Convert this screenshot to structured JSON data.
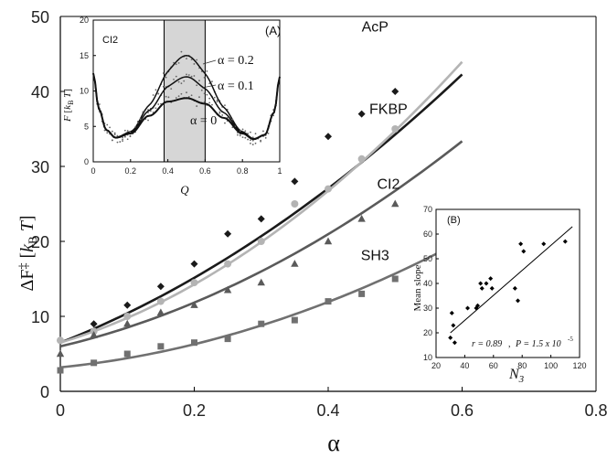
{
  "chart_data": [
    {
      "type": "scatter",
      "title": "",
      "xlabel": "α",
      "ylabel": "ΔF‡ [kB T]",
      "xlim": [
        0,
        0.8
      ],
      "ylim": [
        0,
        50
      ],
      "xticks": [
        "0",
        "0.2",
        "0.4",
        "0.6",
        "0.8"
      ],
      "yticks": [
        "0",
        "10",
        "20",
        "30",
        "40",
        "50"
      ],
      "series": [
        {
          "name": "AcP",
          "color": "#1a1a1a",
          "marker": "diamond",
          "x": [
            0,
            0.05,
            0.1,
            0.15,
            0.2,
            0.25,
            0.3,
            0.35,
            0.4,
            0.45,
            0.5
          ],
          "y": [
            6.8,
            9.0,
            11.5,
            14.0,
            17.0,
            21.0,
            23.0,
            28.0,
            34.0,
            37.0,
            40.0
          ],
          "fit": {
            "a": 6.5,
            "b": 35.0,
            "c": 41.0
          }
        },
        {
          "name": "FKBP",
          "color": "#b4b4b4",
          "marker": "circle",
          "x": [
            0,
            0.05,
            0.1,
            0.15,
            0.2,
            0.25,
            0.3,
            0.35,
            0.4,
            0.45,
            0.5
          ],
          "y": [
            6.8,
            8.0,
            10.0,
            12.0,
            14.5,
            17.0,
            20.0,
            25.0,
            27.0,
            31.0,
            35.0
          ],
          "fit": {
            "a": 6.5,
            "b": 27.0,
            "c": 59.0
          }
        },
        {
          "name": "CI2",
          "color": "#5a5a5a",
          "marker": "triangle",
          "x": [
            0,
            0.05,
            0.1,
            0.15,
            0.2,
            0.25,
            0.3,
            0.35,
            0.4,
            0.45,
            0.5
          ],
          "y": [
            5.0,
            7.5,
            9.0,
            10.5,
            11.5,
            13.5,
            14.5,
            17.0,
            20.0,
            23.0,
            25.0
          ],
          "fit": {
            "a": 6.0,
            "b": 21.0,
            "c": 41.0
          }
        },
        {
          "name": "SH3",
          "color": "#707070",
          "marker": "square",
          "x": [
            0,
            0.05,
            0.1,
            0.15,
            0.2,
            0.25,
            0.3,
            0.35,
            0.4,
            0.45,
            0.5
          ],
          "y": [
            2.8,
            3.8,
            5.0,
            6.0,
            6.5,
            7.0,
            9.0,
            9.5,
            12.0,
            13.0,
            15.0
          ],
          "fit": {
            "a": 3.2,
            "b": 9.0,
            "c": 32.0
          }
        }
      ]
    },
    {
      "type": "line",
      "panel_label": "(A)",
      "protein_label": "CI2",
      "xlabel": "Q",
      "ylabel": "F [kB T]",
      "xlim": [
        0,
        1
      ],
      "ylim": [
        0,
        20
      ],
      "xticks": [
        "0",
        "0.2",
        "0.4",
        "0.6",
        "0.8",
        "1"
      ],
      "yticks": [
        "0",
        "5",
        "10",
        "15",
        "20"
      ],
      "shaded_region": [
        0.38,
        0.6
      ],
      "series": [
        {
          "name": "α = 0.2",
          "barrier_peak": 15.0
        },
        {
          "name": "α = 0.1",
          "barrier_peak": 12.0
        },
        {
          "name": "α = 0",
          "barrier_peak": 9.0
        }
      ],
      "curve_shape": {
        "Q": [
          0,
          0.03,
          0.07,
          0.12,
          0.2,
          0.3,
          0.4,
          0.5,
          0.6,
          0.7,
          0.8,
          0.86,
          0.92,
          0.97,
          1.0
        ],
        "alpha0": [
          12.5,
          7.5,
          4.5,
          3.4,
          4.0,
          6.5,
          8.5,
          9.0,
          8.2,
          6.2,
          4.0,
          3.2,
          3.8,
          7.0,
          12.0
        ]
      }
    },
    {
      "type": "scatter",
      "panel_label": "(B)",
      "xlabel": "N3",
      "ylabel": "Mean slope",
      "xlim": [
        20,
        120
      ],
      "ylim": [
        10,
        70
      ],
      "xticks": [
        "20",
        "40",
        "60",
        "80",
        "100",
        "120"
      ],
      "yticks": [
        "10",
        "20",
        "30",
        "40",
        "50",
        "60",
        "70"
      ],
      "x": [
        30,
        31,
        32,
        33,
        42,
        48,
        49,
        51,
        52,
        55,
        58,
        59,
        75,
        77,
        79,
        81,
        95,
        110
      ],
      "y": [
        18,
        28,
        23,
        16,
        30,
        30,
        31,
        40,
        38,
        40,
        42,
        38,
        38,
        33,
        56,
        53,
        56,
        57
      ],
      "fit_line": {
        "x": [
          30,
          115
        ],
        "y": [
          20,
          63
        ]
      },
      "stat_r": "r = 0.89",
      "stat_p": "P = 1.5 x 10",
      "stat_p_exp": "-5"
    }
  ]
}
